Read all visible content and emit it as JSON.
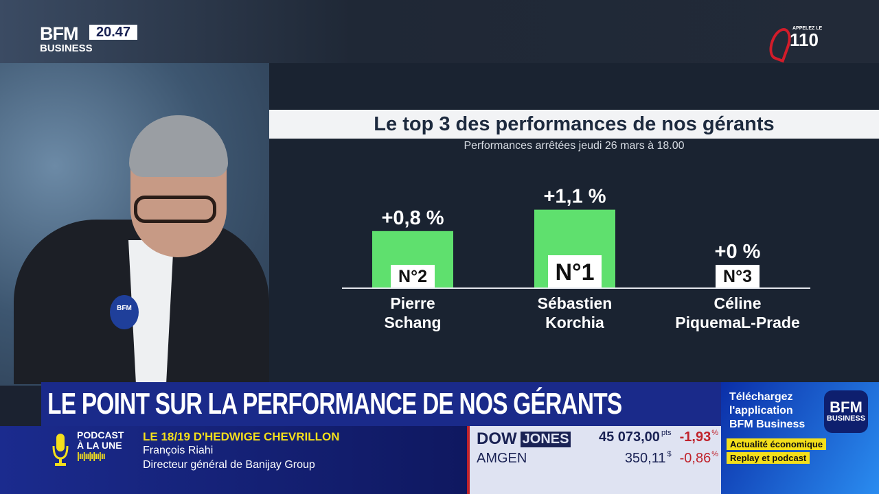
{
  "channel": {
    "logo_top": "BFM",
    "logo_bottom": "BUSINESS",
    "time": "20.47",
    "hotline_label": "APPELEZ LE",
    "hotline_number": "110"
  },
  "chart_data": {
    "type": "bar",
    "title": "Le top 3 des performances de nos gérants",
    "subtitle": "Performances arrêtées jeudi 26 mars à 18.00",
    "categories": [
      "Pierre Schang",
      "Sébastien Korchia",
      "Céline PiquemaL-Prade"
    ],
    "category_lines": [
      [
        "Pierre",
        "Schang"
      ],
      [
        "Sébastien",
        "Korchia"
      ],
      [
        "Céline",
        "PiquemaL-Prade"
      ]
    ],
    "values": [
      0.8,
      1.1,
      0
    ],
    "unit": "%",
    "data_labels": [
      "+0,8 %",
      "+1,1 %",
      "+0 %"
    ],
    "rank_labels": [
      "N°2",
      "N°1",
      "N°3"
    ],
    "bar_color": "#5fe06e"
  },
  "headline": "LE POINT SUR LA PERFORMANCE DE NOS GÉRANTS",
  "podcast": {
    "label_line1": "PODCAST",
    "label_line2": "À LA UNE",
    "show": "LE 18/19 D'HEDWIGE CHEVRILLON",
    "guest": "François Riahi",
    "guest_title": "Directeur général de Banijay Group"
  },
  "ticker": [
    {
      "name_a": "DOW",
      "name_b": "JONES",
      "value": "45 073,00",
      "unit": "pts",
      "change": "-1,93",
      "change_unit": "%"
    },
    {
      "name_a": "AMGEN",
      "name_b": "",
      "value": "350,11",
      "unit": "$",
      "change": "-0,86",
      "change_unit": "%"
    }
  ],
  "promo": {
    "line1": "Téléchargez",
    "line2": "l'application",
    "line3": "BFM Business",
    "tag1": "Actualité économique",
    "tag2": "Replay et podcast",
    "app_top": "BFM",
    "app_bottom": "BUSINESS"
  },
  "mic_label": "BFM"
}
